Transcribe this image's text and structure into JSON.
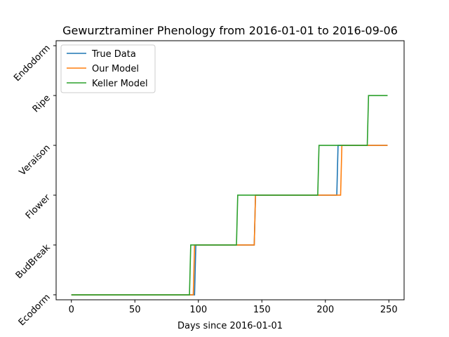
{
  "chart_data": {
    "type": "line",
    "title": "Gewurztraminer Phenology from 2016-01-01 to 2016-09-06",
    "xlabel": "Days since 2016-01-01",
    "ylabel": "",
    "xlim": [
      -12,
      262
    ],
    "ylim": [
      -0.1,
      5.1
    ],
    "x_ticks": [
      0,
      50,
      100,
      150,
      200,
      250
    ],
    "y_ticks": [
      0,
      1,
      2,
      3,
      4,
      5
    ],
    "y_tick_labels": [
      "Ecodorm",
      "BudBreak",
      "Flower",
      "Veraison",
      "Ripe",
      "Endodorm"
    ],
    "grid": false,
    "legend_position": "top-left",
    "series": [
      {
        "name": "True Data",
        "color": "#1f77b4",
        "points": [
          [
            0,
            0
          ],
          [
            97,
            0
          ],
          [
            98,
            1
          ],
          [
            144,
            1
          ],
          [
            145,
            2
          ],
          [
            209,
            2
          ],
          [
            210,
            3
          ],
          [
            249,
            3
          ]
        ]
      },
      {
        "name": "Our Model",
        "color": "#ff7f0e",
        "points": [
          [
            0,
            0
          ],
          [
            96,
            0
          ],
          [
            97,
            1
          ],
          [
            144,
            1
          ],
          [
            145,
            2
          ],
          [
            212,
            2
          ],
          [
            213,
            3
          ],
          [
            249,
            3
          ]
        ]
      },
      {
        "name": "Keller Model",
        "color": "#2ca02c",
        "points": [
          [
            0,
            0
          ],
          [
            93,
            0
          ],
          [
            94,
            1
          ],
          [
            130,
            1
          ],
          [
            131,
            2
          ],
          [
            194,
            2
          ],
          [
            195,
            3
          ],
          [
            233,
            3
          ],
          [
            234,
            4
          ],
          [
            249,
            4
          ]
        ]
      }
    ]
  }
}
